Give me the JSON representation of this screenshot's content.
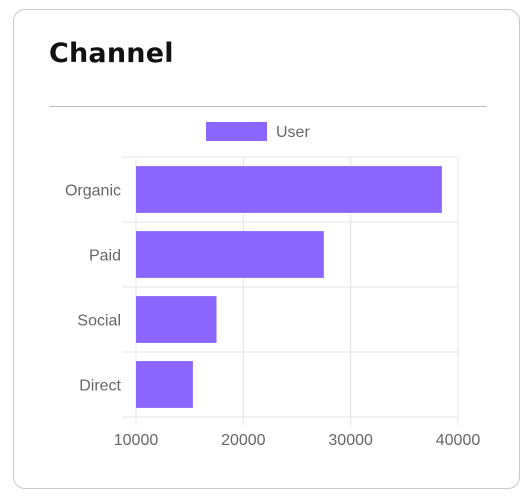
{
  "card": {
    "title": "Channel"
  },
  "colors": {
    "bar": "#8a66ff",
    "grid": "#e4e4e4",
    "text": "#666666"
  },
  "chart_data": {
    "type": "bar",
    "orientation": "horizontal",
    "categories": [
      "Organic",
      "Paid",
      "Social",
      "Direct"
    ],
    "series": [
      {
        "name": "User",
        "values": [
          38500,
          27500,
          17500,
          15300
        ]
      }
    ],
    "xlim": [
      10000,
      40000
    ],
    "x_ticks": [
      "10000",
      "20000",
      "30000",
      "40000"
    ],
    "grid": true,
    "legend": "top-center"
  }
}
